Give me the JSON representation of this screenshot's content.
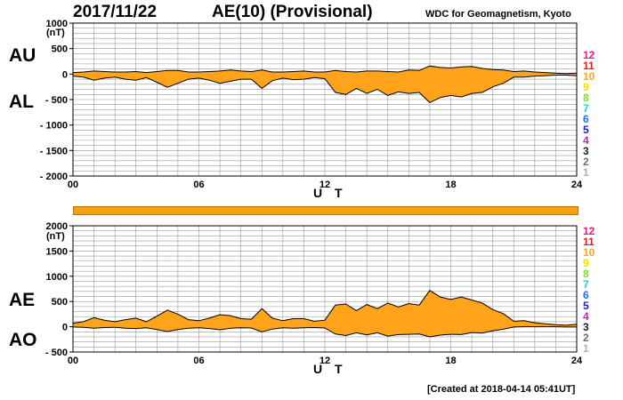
{
  "header": {
    "date": "2017/11/22",
    "title": "AE(10) (Provisional)",
    "organization": "WDC for Geomagnetism, Kyoto"
  },
  "footer": {
    "created": "[Created at 2018-04-14 05:41UT]"
  },
  "side_labels": {
    "au": "AU",
    "al": "AL",
    "ae": "AE",
    "ao": "AO"
  },
  "unit_label": "(nT)",
  "xlabel": "U T",
  "station_legend": {
    "labels": [
      "12",
      "11",
      "10",
      "9",
      "8",
      "7",
      "6",
      "5",
      "4",
      "3",
      "2",
      "1"
    ],
    "colors": [
      "#e0207a",
      "#e02020",
      "#f5a623",
      "#f0e000",
      "#80e020",
      "#20d0d0",
      "#2070f0",
      "#2020c0",
      "#c020c0",
      "#202020",
      "#707070",
      "#b0b0b0"
    ]
  },
  "colors": {
    "fill": "#ffa31a",
    "line": "#000000",
    "grid": "#999999"
  },
  "chart_data": [
    {
      "type": "area",
      "title": "",
      "xlabel": "U T",
      "ylabel": "(nT)",
      "xlim": [
        0,
        24
      ],
      "ylim": [
        -2000,
        1000
      ],
      "xticks": [
        0,
        6,
        12,
        18,
        24
      ],
      "xtick_labels": [
        "00",
        "06",
        "12",
        "18",
        "24"
      ],
      "yticks": [
        1000,
        500,
        0,
        -500,
        -1000,
        -1500,
        -2000
      ],
      "ytick_labels": [
        "1000",
        "500",
        "0",
        "- 500",
        "- 1000",
        "- 1500",
        "- 2000"
      ],
      "grid": true,
      "x": [
        0,
        0.5,
        1,
        1.5,
        2,
        2.5,
        3,
        3.5,
        4,
        4.5,
        5,
        5.5,
        6,
        6.5,
        7,
        7.5,
        8,
        8.5,
        9,
        9.5,
        10,
        10.5,
        11,
        11.5,
        12,
        12.5,
        13,
        13.5,
        14,
        14.5,
        15,
        15.5,
        16,
        16.5,
        17,
        17.5,
        18,
        18.5,
        19,
        19.5,
        20,
        20.5,
        21,
        21.5,
        22,
        22.5,
        23,
        23.5,
        24
      ],
      "series": [
        {
          "name": "AU",
          "values": [
            30,
            40,
            60,
            50,
            40,
            40,
            50,
            30,
            50,
            70,
            70,
            40,
            40,
            50,
            60,
            80,
            60,
            50,
            80,
            40,
            40,
            50,
            60,
            40,
            40,
            70,
            50,
            40,
            60,
            60,
            50,
            40,
            80,
            70,
            160,
            130,
            120,
            140,
            150,
            110,
            90,
            80,
            50,
            60,
            40,
            30,
            20,
            10,
            20
          ]
        },
        {
          "name": "AL",
          "values": [
            -40,
            -60,
            -120,
            -80,
            -60,
            -100,
            -120,
            -70,
            -160,
            -260,
            -180,
            -100,
            -80,
            -120,
            -180,
            -140,
            -100,
            -100,
            -280,
            -130,
            -80,
            -110,
            -100,
            -70,
            -90,
            -360,
            -400,
            -280,
            -380,
            -300,
            -420,
            -350,
            -380,
            -360,
            -560,
            -460,
            -420,
            -450,
            -380,
            -360,
            -250,
            -180,
            -60,
            -60,
            -40,
            -30,
            -20,
            -20,
            -30
          ]
        }
      ]
    },
    {
      "type": "area",
      "title": "",
      "xlabel": "U T",
      "ylabel": "(nT)",
      "xlim": [
        0,
        24
      ],
      "ylim": [
        -500,
        2000
      ],
      "xticks": [
        0,
        6,
        12,
        18,
        24
      ],
      "xtick_labels": [
        "00",
        "06",
        "12",
        "18",
        "24"
      ],
      "yticks": [
        2000,
        1500,
        1000,
        500,
        0,
        -500
      ],
      "ytick_labels": [
        "2000",
        "1500",
        "1000",
        "500",
        "0",
        "- 500"
      ],
      "grid": true,
      "x": [
        0,
        0.5,
        1,
        1.5,
        2,
        2.5,
        3,
        3.5,
        4,
        4.5,
        5,
        5.5,
        6,
        6.5,
        7,
        7.5,
        8,
        8.5,
        9,
        9.5,
        10,
        10.5,
        11,
        11.5,
        12,
        12.5,
        13,
        13.5,
        14,
        14.5,
        15,
        15.5,
        16,
        16.5,
        17,
        17.5,
        18,
        18.5,
        19,
        19.5,
        20,
        20.5,
        21,
        21.5,
        22,
        22.5,
        23,
        23.5,
        24
      ],
      "series": [
        {
          "name": "AE",
          "values": [
            70,
            100,
            180,
            130,
            100,
            140,
            170,
            100,
            210,
            330,
            250,
            140,
            120,
            170,
            240,
            220,
            160,
            150,
            360,
            170,
            120,
            160,
            160,
            110,
            130,
            430,
            450,
            320,
            440,
            360,
            470,
            390,
            460,
            430,
            720,
            590,
            540,
            590,
            530,
            470,
            340,
            260,
            110,
            120,
            80,
            60,
            40,
            30,
            50
          ]
        },
        {
          "name": "AO",
          "values": [
            -5,
            -10,
            -30,
            -15,
            -10,
            -30,
            -35,
            -20,
            -55,
            -95,
            -55,
            -30,
            -20,
            -35,
            -60,
            -30,
            -20,
            -25,
            -100,
            -45,
            -20,
            -30,
            -20,
            -15,
            -25,
            -145,
            -175,
            -120,
            -160,
            -120,
            -185,
            -155,
            -150,
            -145,
            -200,
            -165,
            -150,
            -155,
            -115,
            -125,
            -80,
            -50,
            -5,
            0,
            0,
            0,
            0,
            -5,
            -5
          ]
        }
      ]
    }
  ]
}
